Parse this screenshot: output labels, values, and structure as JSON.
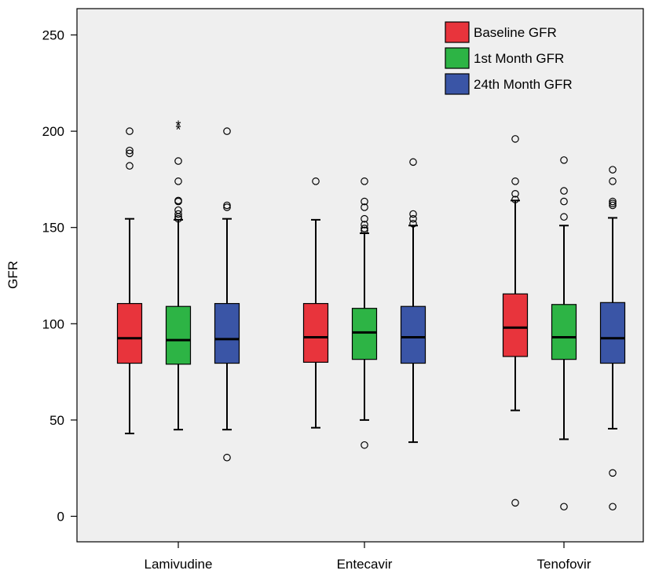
{
  "chart_data": {
    "type": "box",
    "title": "",
    "xlabel": "",
    "ylabel": "GFR",
    "ylim": [
      -10,
      263
    ],
    "yticks": [
      0,
      50,
      100,
      150,
      200,
      250
    ],
    "categories": [
      "Lamivudine",
      "Entecavir",
      "Tenofovir"
    ],
    "grid": false,
    "legend_position": "top-right",
    "background_color": "#efefef",
    "series": [
      {
        "name": "Baseline GFR",
        "color": "#e8343c",
        "boxes": [
          {
            "min": 43,
            "q1": 79.5,
            "median": 92.5,
            "q3": 110.5,
            "max": 154.5,
            "outliers": [
              200,
              190,
              188.5,
              182
            ],
            "extremes": []
          },
          {
            "min": 46,
            "q1": 80,
            "median": 93,
            "q3": 110.5,
            "max": 154,
            "outliers": [
              174
            ],
            "extremes": []
          },
          {
            "min": 55,
            "q1": 83,
            "median": 98,
            "q3": 115.5,
            "max": 164,
            "outliers": [
              196,
              174,
              167.5,
              164.5,
              7
            ],
            "extremes": []
          }
        ]
      },
      {
        "name": "1st Month GFR",
        "color": "#2db445",
        "boxes": [
          {
            "min": 45,
            "q1": 79,
            "median": 91.5,
            "q3": 109,
            "max": 154,
            "outliers": [
              184.5,
              174,
              164,
              163.5,
              159,
              157,
              155.5,
              154.5
            ],
            "extremes": [
              203,
              201
            ]
          },
          {
            "min": 50,
            "q1": 81.5,
            "median": 95.5,
            "q3": 108,
            "max": 147,
            "outliers": [
              174,
              163.5,
              160.5,
              154.5,
              151.5,
              149.5,
              148.5,
              37
            ],
            "extremes": []
          },
          {
            "min": 40,
            "q1": 81.5,
            "median": 93,
            "q3": 110,
            "max": 151,
            "outliers": [
              185,
              169,
              163.5,
              155.5,
              5
            ],
            "extremes": []
          }
        ]
      },
      {
        "name": "24th Month GFR",
        "color": "#3a55a6",
        "boxes": [
          {
            "min": 45,
            "q1": 79.5,
            "median": 92,
            "q3": 110.5,
            "max": 154.5,
            "outliers": [
              200,
              161.5,
              160.5,
              30.5
            ],
            "extremes": []
          },
          {
            "min": 38.5,
            "q1": 79.5,
            "median": 93,
            "q3": 109,
            "max": 151,
            "outliers": [
              184,
              157,
              154.5,
              152
            ],
            "extremes": []
          },
          {
            "min": 45.5,
            "q1": 79.5,
            "median": 92.5,
            "q3": 111,
            "max": 155,
            "outliers": [
              180,
              174,
              163.5,
              162.5,
              161.5,
              22.5,
              5
            ],
            "extremes": []
          }
        ]
      }
    ]
  }
}
